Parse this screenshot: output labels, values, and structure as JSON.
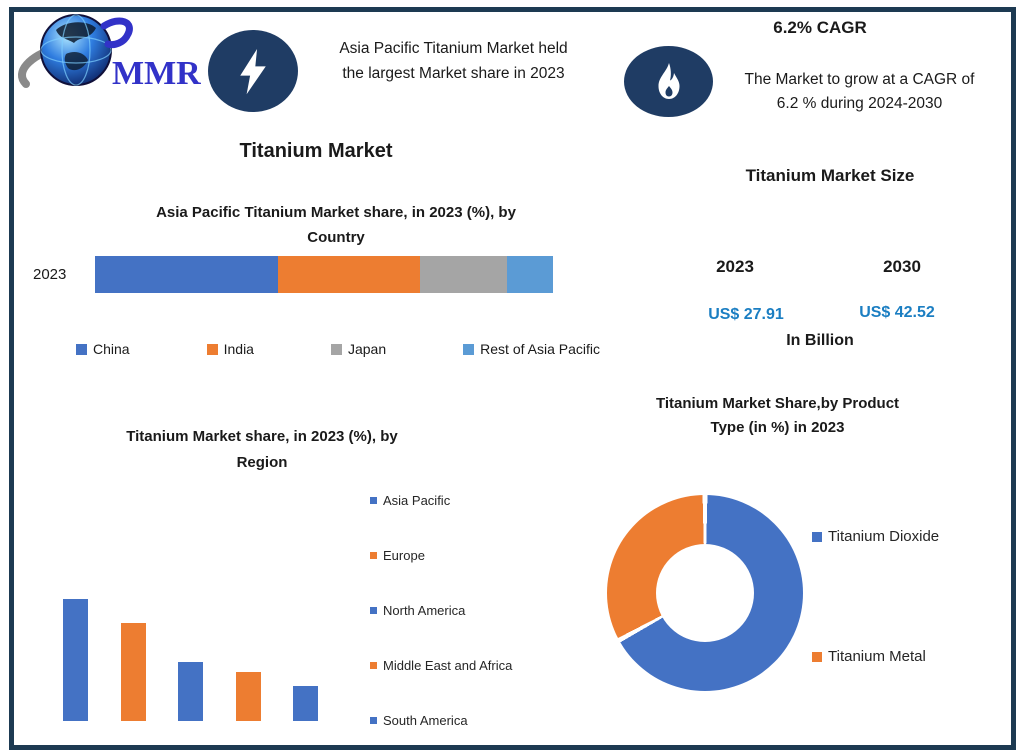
{
  "brand": {
    "logo_text": "MMR"
  },
  "top_banner": {
    "highlight_line1": "Asia Pacific Titanium Market held",
    "highlight_line2": "the largest Market share in 2023",
    "cagr_title": "6.2% CAGR",
    "cagr_line1": "The Market to grow at a CAGR of",
    "cagr_line2": "6.2 % during 2024-2030"
  },
  "main_title": "Titanium Market",
  "market_size": {
    "title": "Titanium Market Size",
    "year_left": "2023",
    "year_right": "2030",
    "value_left": "US$ 27.91",
    "value_right": "US$ 42.52",
    "unit": "In Billion"
  },
  "icons": {
    "logo": "globe-icon",
    "banner_left": "lightning-bolt-icon",
    "banner_right": "flame-icon"
  },
  "colors": {
    "frame_navy": "#1d3a52",
    "icon_navy": "#1f3c64",
    "series_blue": "#4472c4",
    "series_orange": "#ed7d31",
    "series_gray": "#a5a5a5",
    "series_light_blue": "#5b9bd5",
    "value_blue": "#1b7ec2",
    "logo_blue": "#3232c8"
  },
  "chart_data": [
    {
      "type": "bar",
      "subtype": "stacked-horizontal",
      "title": "Asia Pacific Titanium Market share, in 2023 (%), by\nCountry",
      "categories": [
        "2023"
      ],
      "series": [
        {
          "name": "China",
          "color": "#4472c4",
          "values": [
            40
          ]
        },
        {
          "name": "India",
          "color": "#ed7d31",
          "values": [
            31
          ]
        },
        {
          "name": "Japan",
          "color": "#a5a5a5",
          "values": [
            19
          ]
        },
        {
          "name": "Rest of Asia Pacific",
          "color": "#5b9bd5",
          "values": [
            10
          ]
        }
      ],
      "xlim": [
        0,
        100
      ],
      "grid": false,
      "legend_position": "bottom"
    },
    {
      "type": "bar",
      "title": "Titanium  Market share, in 2023 (%), by\nRegion",
      "categories": [
        "Asia Pacific",
        "Europe",
        "North America",
        "Middle East and Africa",
        "South America"
      ],
      "values": [
        35,
        28,
        17,
        14,
        10
      ],
      "bar_colors": [
        "#4472c4",
        "#ed7d31",
        "#4472c4",
        "#ed7d31",
        "#4472c4"
      ],
      "ylim": [
        0,
        35
      ],
      "grid": false,
      "legend_position": "right"
    },
    {
      "type": "pie",
      "subtype": "donut",
      "title": "Titanium Market Share,by Product\nType (in %) in 2023",
      "categories": [
        "Titanium Dioxide",
        "Titanium Metal"
      ],
      "values": [
        67,
        33
      ],
      "colors": [
        "#4472c4",
        "#ed7d31"
      ],
      "start_angle_deg": 0,
      "direction": "clockwise",
      "legend_position": "right"
    }
  ]
}
